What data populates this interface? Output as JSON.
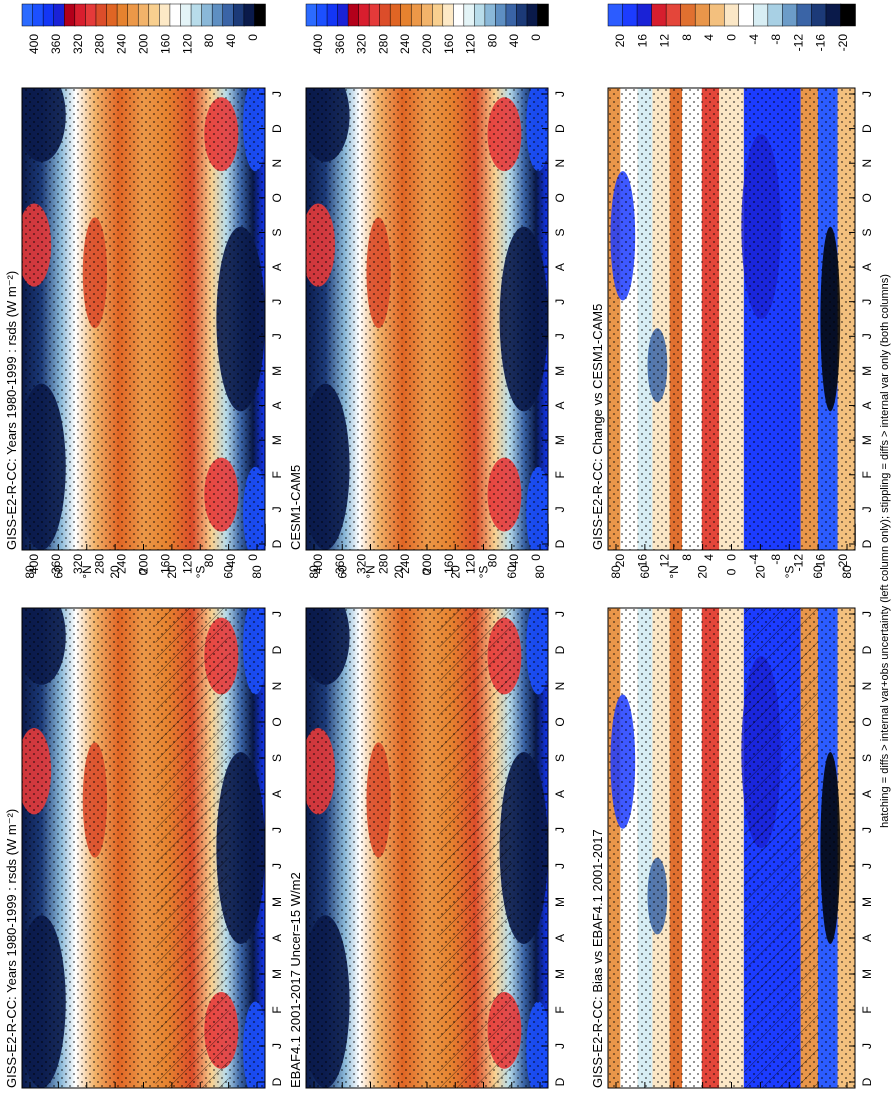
{
  "footnote": "hatching = diffs > internal var+obs uncertainty (left column only); stippling = diffs > internal var only (both columns)",
  "palettes": {
    "abs": [
      "#000000",
      "#0a1a4a",
      "#1c3a78",
      "#3a64a6",
      "#5e8fc2",
      "#8ab8d8",
      "#b8dcea",
      "#e4f4f7",
      "#ffffff",
      "#fde9c6",
      "#f8cf8f",
      "#f2b36a",
      "#ec9848",
      "#e6822f",
      "#e06524",
      "#dc4d2a",
      "#e53a3a",
      "#d81e2e",
      "#b3001a",
      "#1a22d6",
      "#1336f5",
      "#1c50ff",
      "#2c6bff"
    ],
    "diff": [
      "#000000",
      "#0a1a4a",
      "#1c3a78",
      "#3a64a6",
      "#6c9cc8",
      "#a8d0e4",
      "#d8eef4",
      "#ffffff",
      "#fbe7c6",
      "#f3c07e",
      "#e9964a",
      "#e07030",
      "#e4463a",
      "#d61e2e",
      "#1a22d6",
      "#1c3cff",
      "#2c5cff"
    ]
  },
  "chart_data": [
    {
      "type": "heatmap",
      "title": "GISS-E2-R-CC: Years 1980-1999 : rsds (W m⁻²)",
      "x_ticks": [
        "D",
        "J",
        "F",
        "M",
        "A",
        "M",
        "J",
        "J",
        "A",
        "S",
        "O",
        "N",
        "D",
        "J"
      ],
      "y_ticks": [
        "80",
        "60",
        "°N",
        "20",
        "0",
        "20",
        "°S",
        "60",
        "80"
      ],
      "colorbar_ticks": [
        "0",
        "40",
        "80",
        "120",
        "160",
        "200",
        "240",
        "280",
        "320",
        "360",
        "400"
      ],
      "palette": "abs",
      "hatching": true
    },
    {
      "type": "heatmap",
      "title": "GISS-E2-R-CC: Years 1980-1999 : rsds (W m⁻²)",
      "x_ticks": [
        "D",
        "J",
        "F",
        "M",
        "A",
        "M",
        "J",
        "J",
        "A",
        "S",
        "O",
        "N",
        "D",
        "J"
      ],
      "y_ticks": [
        "80",
        "60",
        "°N",
        "20",
        "0",
        "20",
        "°S",
        "60",
        "80"
      ],
      "colorbar_ticks": [
        "0",
        "40",
        "80",
        "120",
        "160",
        "200",
        "240",
        "280",
        "320",
        "360",
        "400"
      ],
      "palette": "abs",
      "hatching": false
    },
    {
      "type": "heatmap",
      "title": "EBAF4.1 2001-2017 Uncer=15 W/m2",
      "x_ticks": [
        "D",
        "J",
        "F",
        "M",
        "A",
        "M",
        "J",
        "J",
        "A",
        "S",
        "O",
        "N",
        "D",
        "J"
      ],
      "y_ticks": [
        "80",
        "60",
        "°N",
        "20",
        "0",
        "20",
        "°S",
        "60",
        "80"
      ],
      "colorbar_ticks": [
        "0",
        "40",
        "80",
        "120",
        "160",
        "200",
        "240",
        "280",
        "320",
        "360",
        "400"
      ],
      "palette": "abs",
      "hatching": true
    },
    {
      "type": "heatmap",
      "title": "CESM1-CAM5",
      "x_ticks": [
        "D",
        "J",
        "F",
        "M",
        "A",
        "M",
        "J",
        "J",
        "A",
        "S",
        "O",
        "N",
        "D",
        "J"
      ],
      "y_ticks": [
        "80",
        "60",
        "°N",
        "20",
        "0",
        "20",
        "°S",
        "60",
        "80"
      ],
      "colorbar_ticks": [
        "0",
        "40",
        "80",
        "120",
        "160",
        "200",
        "240",
        "280",
        "320",
        "360",
        "400"
      ],
      "palette": "abs",
      "hatching": false
    },
    {
      "type": "heatmap",
      "title": "GISS-E2-R-CC: Bias vs EBAF4.1 2001-2017",
      "x_ticks": [
        "D",
        "J",
        "F",
        "M",
        "A",
        "M",
        "J",
        "J",
        "A",
        "S",
        "O",
        "N",
        "D",
        "J"
      ],
      "y_ticks": [
        "80",
        "60",
        "°N",
        "20",
        "0",
        "20",
        "°S",
        "60",
        "80"
      ],
      "colorbar_ticks": [
        "-20",
        "-16",
        "-12",
        "-8",
        "-4",
        "0",
        "4",
        "8",
        "12",
        "16",
        "20"
      ],
      "palette": "diff",
      "hatching": true
    },
    {
      "type": "heatmap",
      "title": "GISS-E2-R-CC: Change vs CESM1-CAM5",
      "x_ticks": [
        "D",
        "J",
        "F",
        "M",
        "A",
        "M",
        "J",
        "J",
        "A",
        "S",
        "O",
        "N",
        "D",
        "J"
      ],
      "y_ticks": [
        "80",
        "60",
        "°N",
        "20",
        "0",
        "20",
        "°S",
        "60",
        "80"
      ],
      "colorbar_ticks": [
        "-20",
        "-16",
        "-12",
        "-8",
        "-4",
        "0",
        "4",
        "8",
        "12",
        "16",
        "20"
      ],
      "palette": "diff",
      "hatching": false
    }
  ]
}
